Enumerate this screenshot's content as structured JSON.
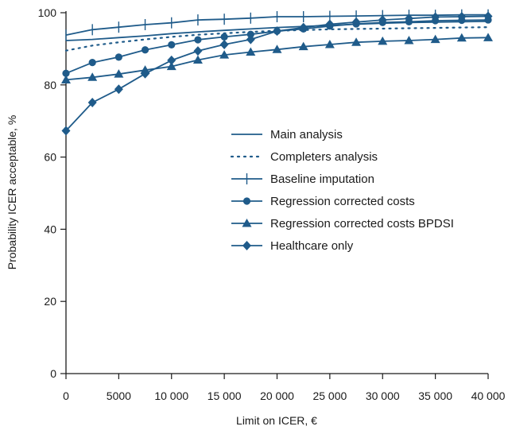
{
  "chart_data": {
    "type": "line",
    "title": "",
    "xlabel": "Limit on ICER, €",
    "ylabel": "Probability ICER acceptable, %",
    "xlim": [
      0,
      40000
    ],
    "ylim": [
      0,
      100
    ],
    "x_ticks": [
      0,
      5000,
      10000,
      15000,
      20000,
      25000,
      30000,
      35000,
      40000
    ],
    "x_tick_labels": [
      "0",
      "5000",
      "10 000",
      "15 000",
      "20 000",
      "25 000",
      "30 000",
      "35 000",
      "40 000"
    ],
    "y_ticks": [
      0,
      20,
      40,
      60,
      80,
      100
    ],
    "y_tick_labels": [
      "0",
      "20",
      "40",
      "60",
      "80",
      "100"
    ],
    "grid": false,
    "legend_position": "center-right",
    "line_color": "#1f5b8a",
    "series": [
      {
        "name": "Main analysis",
        "style": "solid",
        "marker": "none",
        "x": [
          0,
          2500,
          5000,
          7500,
          10000,
          12500,
          15000,
          17500,
          20000,
          22500,
          25000,
          27500,
          30000,
          32500,
          35000,
          37500,
          40000
        ],
        "values": [
          92.3,
          92.6,
          93.1,
          93.6,
          94.2,
          94.7,
          95.1,
          95.5,
          95.9,
          96.2,
          96.5,
          96.8,
          97.1,
          97.3,
          97.4,
          97.5,
          97.6
        ]
      },
      {
        "name": "Completers analysis",
        "style": "dotted",
        "marker": "none",
        "x": [
          0,
          2500,
          5000,
          7500,
          10000,
          12500,
          15000,
          17500,
          20000,
          22500,
          25000,
          27500,
          30000,
          32500,
          35000,
          37500,
          40000
        ],
        "values": [
          89.5,
          90.9,
          91.8,
          92.6,
          93.3,
          93.9,
          94.3,
          94.7,
          95.0,
          95.2,
          95.4,
          95.5,
          95.6,
          95.7,
          95.8,
          95.9,
          96.0
        ]
      },
      {
        "name": "Baseline imputation",
        "style": "solid",
        "marker": "plus",
        "x": [
          0,
          2500,
          5000,
          7500,
          10000,
          12500,
          15000,
          17500,
          20000,
          22500,
          25000,
          27500,
          30000,
          32500,
          35000,
          37500,
          40000
        ],
        "values": [
          93.8,
          95.3,
          96.0,
          96.7,
          97.2,
          98.0,
          98.2,
          98.5,
          98.9,
          98.9,
          99.0,
          99.1,
          99.2,
          99.3,
          99.3,
          99.4,
          99.4
        ]
      },
      {
        "name": "Regression corrected costs",
        "style": "solid",
        "marker": "circle",
        "x": [
          0,
          2500,
          5000,
          7500,
          10000,
          12500,
          15000,
          17500,
          20000,
          22500,
          25000,
          27500,
          30000,
          32500,
          35000,
          37500,
          40000
        ],
        "values": [
          83.2,
          86.2,
          87.7,
          89.7,
          91.1,
          92.5,
          93.3,
          94.0,
          94.9,
          95.5,
          96.3,
          96.9,
          97.3,
          97.5,
          97.8,
          97.9,
          98.0
        ]
      },
      {
        "name": "Regression corrected costs BPDSI",
        "style": "solid",
        "marker": "triangle",
        "x": [
          0,
          2500,
          5000,
          7500,
          10000,
          12500,
          15000,
          17500,
          20000,
          22500,
          25000,
          27500,
          30000,
          32500,
          35000,
          37500,
          40000
        ],
        "values": [
          81.4,
          82.1,
          83.0,
          84.1,
          85.1,
          86.9,
          88.3,
          89.1,
          89.8,
          90.6,
          91.2,
          91.8,
          92.1,
          92.3,
          92.6,
          93.0,
          93.1
        ]
      },
      {
        "name": "Healthcare only",
        "style": "solid",
        "marker": "diamond",
        "x": [
          0,
          2500,
          5000,
          7500,
          10000,
          12500,
          15000,
          17500,
          20000,
          22500,
          25000,
          27500,
          30000,
          32500,
          35000,
          37500,
          40000
        ],
        "values": [
          67.3,
          75.1,
          78.8,
          83.1,
          86.8,
          89.4,
          91.2,
          92.6,
          94.9,
          95.9,
          96.8,
          97.4,
          98.0,
          98.4,
          98.8,
          98.9,
          99.0
        ]
      }
    ]
  }
}
